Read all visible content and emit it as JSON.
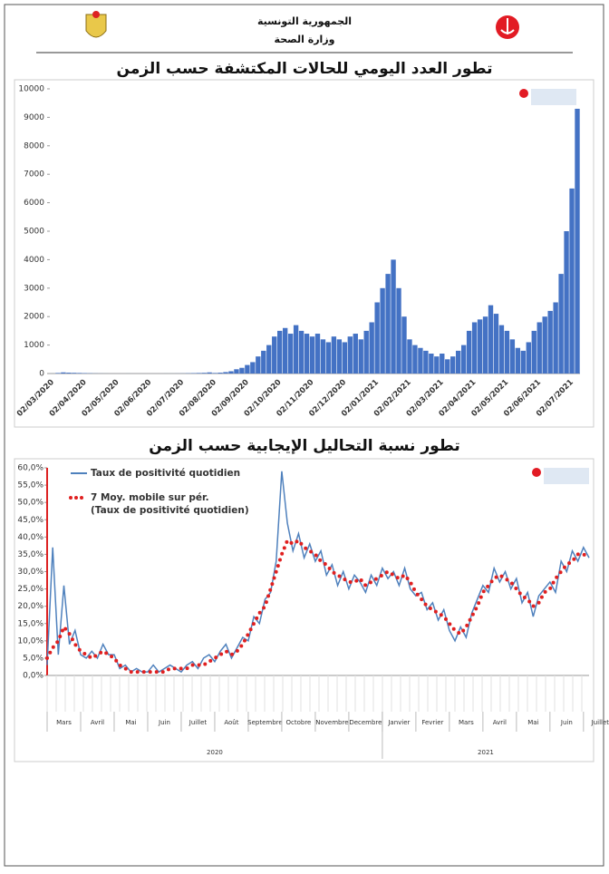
{
  "header": {
    "line1": "الجمهورية التونسية",
    "line2": "وزارة الصحة"
  },
  "chart_data": [
    {
      "type": "bar",
      "title": "تطور العدد اليومي للحالات المكتشفة حسب الزمن",
      "color": "#4472c4",
      "ylim": [
        0,
        10000
      ],
      "yticks": [
        0,
        1000,
        2000,
        3000,
        4000,
        5000,
        6000,
        7000,
        8000,
        9000,
        10000
      ],
      "categories": [
        "02/03/2020",
        null,
        null,
        null,
        null,
        null,
        "02/04/2020",
        null,
        null,
        null,
        null,
        null,
        "02/05/2020",
        null,
        null,
        null,
        null,
        null,
        "02/06/2020",
        null,
        null,
        null,
        null,
        null,
        "02/07/2020",
        null,
        null,
        null,
        null,
        null,
        "02/08/2020",
        null,
        null,
        null,
        null,
        null,
        "02/09/2020",
        null,
        null,
        null,
        null,
        null,
        "02/10/2020",
        null,
        null,
        null,
        null,
        null,
        "02/11/2020",
        null,
        null,
        null,
        null,
        null,
        "02/12/2020",
        null,
        null,
        null,
        null,
        null,
        "02/01/2021",
        null,
        null,
        null,
        null,
        null,
        "02/02/2021",
        null,
        null,
        null,
        null,
        null,
        "02/03/2021",
        null,
        null,
        null,
        null,
        null,
        "02/04/2021",
        null,
        null,
        null,
        null,
        null,
        "02/05/2021",
        null,
        null,
        null,
        null,
        null,
        "02/06/2021",
        null,
        null,
        null,
        null,
        null,
        "02/07/2021",
        null
      ],
      "values": [
        2,
        20,
        40,
        30,
        25,
        20,
        15,
        10,
        5,
        3,
        2,
        1,
        1,
        1,
        2,
        1,
        1,
        1,
        1,
        1,
        1,
        2,
        2,
        3,
        5,
        10,
        15,
        20,
        25,
        40,
        20,
        30,
        50,
        80,
        150,
        200,
        300,
        400,
        600,
        800,
        1000,
        1300,
        1500,
        1600,
        1400,
        1700,
        1500,
        1400,
        1300,
        1400,
        1200,
        1100,
        1300,
        1200,
        1100,
        1300,
        1400,
        1200,
        1500,
        1800,
        2500,
        3000,
        3500,
        4000,
        3000,
        2000,
        1200,
        1000,
        900,
        800,
        700,
        600,
        700,
        500,
        600,
        800,
        1000,
        1500,
        1800,
        1900,
        2000,
        2400,
        2100,
        1700,
        1500,
        1200,
        900,
        800,
        1100,
        1500,
        1800,
        2000,
        2200,
        2500,
        3500,
        5000,
        6500,
        9300
      ]
    },
    {
      "type": "line",
      "title": "تطور نسبة التحاليل الإيجابية حسب الزمن",
      "ylim": [
        0,
        60
      ],
      "yticks": [
        {
          "value": 0,
          "label": "0,0%"
        },
        {
          "value": 5,
          "label": "5,0%"
        },
        {
          "value": 10,
          "label": "10,0%"
        },
        {
          "value": 15,
          "label": "15,0%"
        },
        {
          "value": 20,
          "label": "20,0%"
        },
        {
          "value": 25,
          "label": "25,0%"
        },
        {
          "value": 30,
          "label": "30,0%"
        },
        {
          "value": 35,
          "label": "35,0%"
        },
        {
          "value": 40,
          "label": "40,0%"
        },
        {
          "value": 45,
          "label": "45,0%"
        },
        {
          "value": 50,
          "label": "50,0%"
        },
        {
          "value": 55,
          "label": "55,0%"
        },
        {
          "value": 60,
          "label": "60,0%"
        }
      ],
      "months": [
        "Mars",
        "Avril",
        "Mai",
        "Juin",
        "Juillet",
        "Août",
        "Septembre",
        "Octobre",
        "Novembre",
        "Decembre",
        "Janvier",
        "Fevrier",
        "Mars",
        "Avril",
        "Mai",
        "Juin",
        "Juillet"
      ],
      "years": [
        "2020",
        "2021"
      ],
      "series": [
        {
          "name": "Taux de positivité quotidien",
          "color": "#4f81bd",
          "values": [
            3,
            37,
            6,
            26,
            9,
            13,
            6,
            5,
            7,
            5,
            9,
            6,
            6,
            2,
            3,
            1,
            2,
            1,
            1,
            3,
            1,
            2,
            3,
            2,
            1,
            3,
            4,
            2,
            5,
            6,
            4,
            7,
            9,
            5,
            8,
            11,
            10,
            17,
            15,
            22,
            24,
            33,
            59,
            44,
            36,
            41,
            34,
            38,
            33,
            36,
            29,
            32,
            26,
            30,
            25,
            29,
            27,
            24,
            29,
            26,
            31,
            28,
            30,
            26,
            31,
            25,
            23,
            24,
            19,
            21,
            16,
            19,
            13,
            10,
            14,
            11,
            18,
            22,
            26,
            24,
            31,
            27,
            30,
            25,
            28,
            21,
            24,
            17,
            23,
            25,
            27,
            24,
            33,
            30,
            36,
            33,
            37,
            34
          ]
        },
        {
          "name": "7 Moy. mobile sur pér. (Taux de positivité quotidien)",
          "color": "#e02020",
          "values": [
            5,
            8,
            10,
            14,
            12,
            9,
            7,
            6,
            5,
            6,
            7,
            6,
            5,
            3,
            2,
            1,
            1,
            1,
            1,
            1,
            1,
            1,
            2,
            2,
            2,
            2,
            3,
            3,
            3,
            4,
            5,
            6,
            7,
            6,
            7,
            9,
            12,
            15,
            18,
            20,
            25,
            30,
            35,
            39,
            38,
            39,
            37,
            36,
            35,
            33,
            32,
            30,
            29,
            28,
            27,
            27,
            28,
            26,
            27,
            28,
            29,
            30,
            29,
            28,
            29,
            27,
            24,
            22,
            20,
            19,
            18,
            17,
            15,
            13,
            12,
            14,
            17,
            20,
            24,
            26,
            28,
            29,
            28,
            27,
            25,
            23,
            22,
            20,
            21,
            24,
            25,
            28,
            30,
            32,
            33,
            35,
            35,
            34
          ]
        }
      ]
    }
  ]
}
